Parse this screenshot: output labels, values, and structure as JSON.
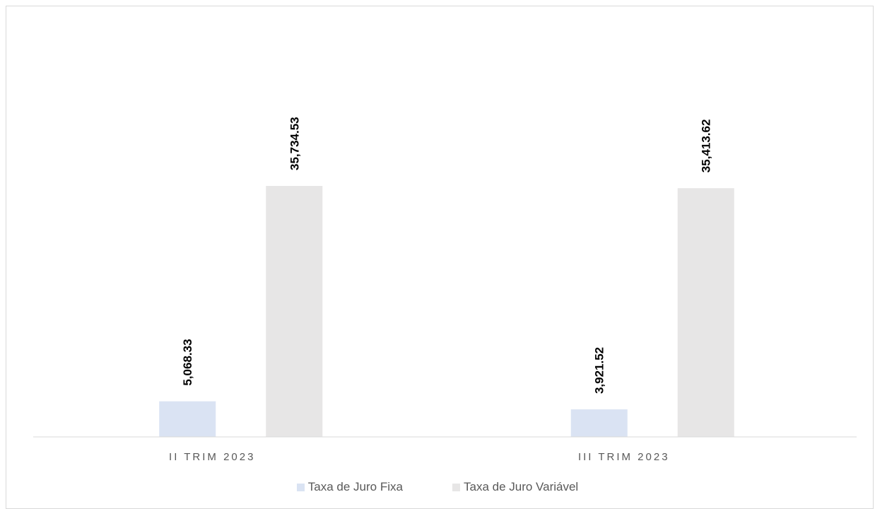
{
  "chart_data": {
    "type": "bar",
    "title": "",
    "xlabel": "",
    "ylabel": "",
    "categories": [
      "II TRIM 2023",
      "III TRIM 2023"
    ],
    "series": [
      {
        "name": "Taxa de Juro Fixa",
        "color": "#dae3f3",
        "values": [
          5068.33,
          3921.52
        ],
        "labels": [
          "5,068.33",
          "3,921.52"
        ]
      },
      {
        "name": "Taxa de Juro Variável",
        "color": "#e7e6e6",
        "values": [
          35734.53,
          35413.62
        ],
        "labels": [
          "35,734.53",
          "35,413.62"
        ]
      }
    ],
    "ylim": [
      0,
      40000
    ],
    "grid": false,
    "y_axis_visible": false,
    "legend_position": "bottom"
  }
}
